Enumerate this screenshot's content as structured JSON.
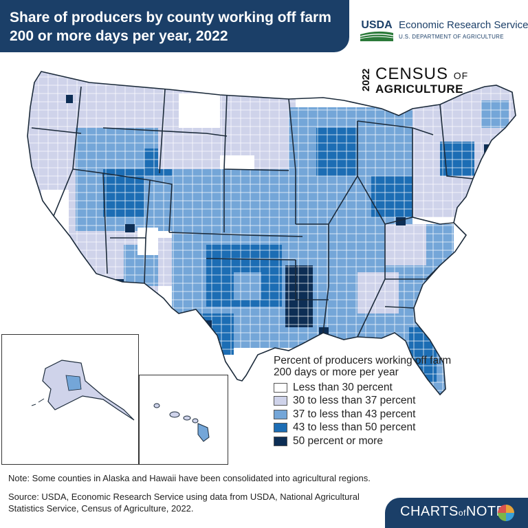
{
  "header": {
    "title_line1": "Share of producers by county working off farm",
    "title_line2": "200 or more days per year, 2022",
    "agency_logo_text": "USDA",
    "agency_name": "Economic Research Service",
    "department": "U.S. DEPARTMENT OF AGRICULTURE"
  },
  "census_logo": {
    "year": "2022",
    "word": "CENSUS",
    "of": "OF",
    "subject": "AGRICULTURE"
  },
  "legend": {
    "title": "Percent of producers working off farm 200 days or more per year",
    "items": [
      {
        "label": "Less than 30 percent",
        "color": "#ffffff"
      },
      {
        "label": "30 to less than 37 percent",
        "color": "#cfd3ea"
      },
      {
        "label": "37 to less than 43 percent",
        "color": "#74a6d8"
      },
      {
        "label": "43 to less than 50 percent",
        "color": "#1c6db4"
      },
      {
        "label": "50 percent or more",
        "color": "#0d2e55"
      }
    ]
  },
  "map": {
    "insets": [
      "Alaska",
      "Hawaii"
    ],
    "border_color": "#1b2a3a"
  },
  "footer": {
    "note": "Note: Some counties in Alaska and Hawaii have been consolidated into agricultural regions.",
    "source": "Source: USDA, Economic Research Service using data from USDA, National Agricultural Statistics Service, Census of Agriculture, 2022.",
    "brand_charts": "CHARTS",
    "brand_of": "of",
    "brand_note": "NOTE"
  },
  "colors": {
    "navy": "#1b3f68",
    "usda_green": "#2b7a3a"
  }
}
